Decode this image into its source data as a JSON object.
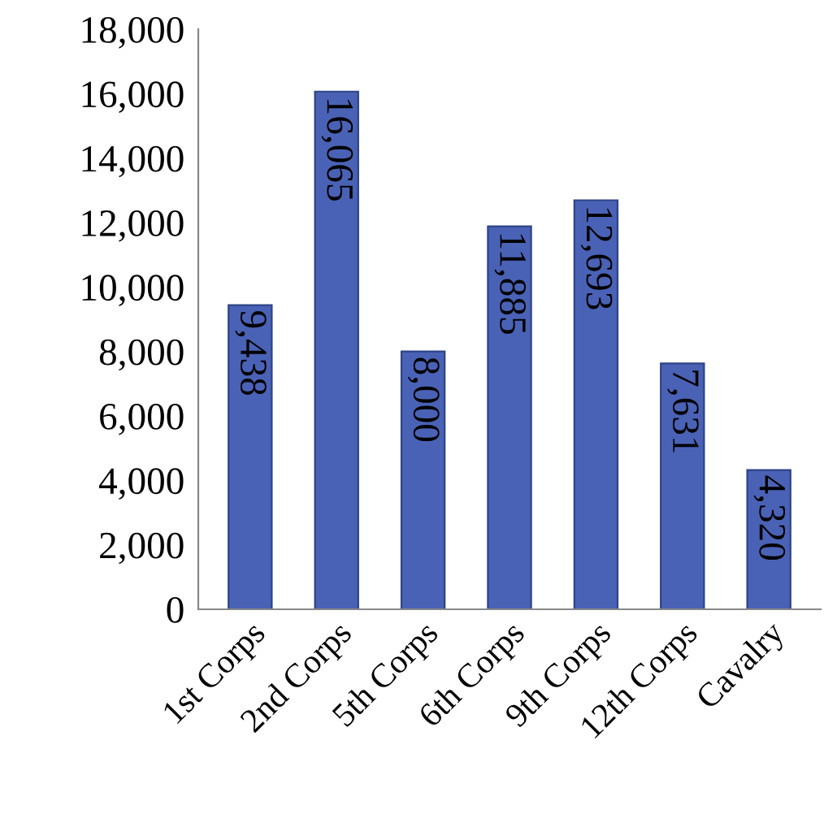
{
  "chart_data": {
    "type": "bar",
    "categories": [
      "1st Corps",
      "2nd Corps",
      "5th Corps",
      "6th Corps",
      "9th Corps",
      "12th Corps",
      "Cavalry"
    ],
    "values": [
      9438,
      16065,
      8000,
      11885,
      12693,
      7631,
      4320
    ],
    "value_labels": [
      "9,438",
      "16,065",
      "8,000",
      "11,885",
      "12,693",
      "7,631",
      "4,320"
    ],
    "color": "#4a62b5",
    "ylim": [
      0,
      18000
    ],
    "yticks": [
      {
        "value": 0,
        "label": "0"
      },
      {
        "value": 2000,
        "label": "2,000"
      },
      {
        "value": 4000,
        "label": "4,000"
      },
      {
        "value": 6000,
        "label": "6,000"
      },
      {
        "value": 8000,
        "label": "8,000"
      },
      {
        "value": 10000,
        "label": "10,000"
      },
      {
        "value": 12000,
        "label": "12,000"
      },
      {
        "value": 14000,
        "label": "14,000"
      },
      {
        "value": 16000,
        "label": "16,000"
      },
      {
        "value": 18000,
        "label": "18,000"
      }
    ],
    "grid": false,
    "legend": false
  }
}
